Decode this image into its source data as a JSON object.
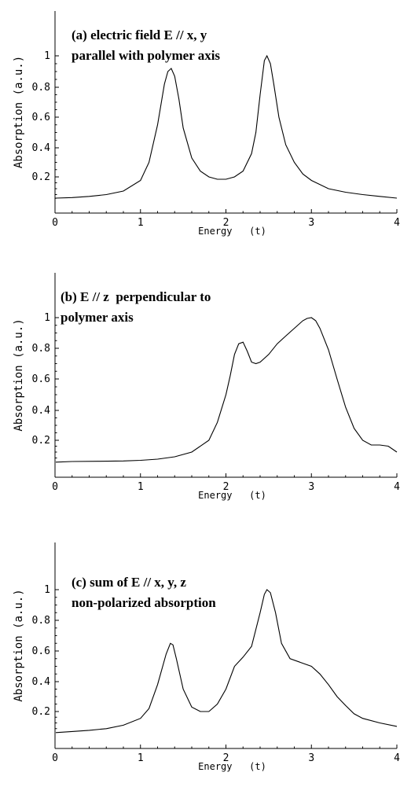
{
  "chart_data": [
    {
      "type": "line",
      "panel": "a",
      "annotation": [
        "(a) electric field E // x, y",
        "parallel with polymer axis"
      ],
      "xlabel": "Energy   (t)",
      "ylabel": "Absorption (a.u.)",
      "xlim": [
        0,
        4
      ],
      "ylim": [
        0,
        1.05
      ],
      "xticks": [
        "0",
        "1",
        "2",
        "3",
        "4"
      ],
      "yticks": [
        "0.2",
        "0.4",
        "0.6",
        "0.8",
        "1"
      ],
      "series": [
        {
          "x": [
            -0.05,
            0.0,
            0.2,
            0.4,
            0.6,
            0.8,
            1.0,
            1.1,
            1.2,
            1.28,
            1.32,
            1.36,
            1.4,
            1.45,
            1.5,
            1.6,
            1.7,
            1.8,
            1.9,
            2.0,
            2.1,
            2.2,
            2.3,
            2.35,
            2.4,
            2.45,
            2.48,
            2.52,
            2.56,
            2.62,
            2.7,
            2.8,
            2.9,
            3.0,
            3.2,
            3.4,
            3.6,
            3.8,
            4.0
          ],
          "y": [
            0.015,
            0.02,
            0.025,
            0.035,
            0.05,
            0.08,
            0.17,
            0.3,
            0.55,
            0.82,
            0.9,
            0.92,
            0.87,
            0.72,
            0.53,
            0.33,
            0.24,
            0.2,
            0.18,
            0.18,
            0.2,
            0.24,
            0.36,
            0.5,
            0.75,
            0.97,
            1.0,
            0.95,
            0.82,
            0.6,
            0.42,
            0.3,
            0.22,
            0.17,
            0.1,
            0.07,
            0.05,
            0.035,
            0.02
          ]
        }
      ]
    },
    {
      "type": "line",
      "panel": "b",
      "annotation": [
        "(b) E // z  perpendicular to",
        "polymer axis"
      ],
      "xlabel": "Energy   (t)",
      "ylabel": "Absorption (a.u.)",
      "xlim": [
        0,
        4
      ],
      "ylim": [
        0,
        1.05
      ],
      "xticks": [
        "0",
        "1",
        "2",
        "3",
        "4"
      ],
      "yticks": [
        "0.2",
        "0.4",
        "0.6",
        "0.8",
        "1"
      ],
      "series": [
        {
          "x": [
            -0.05,
            0.2,
            0.5,
            0.8,
            1.0,
            1.2,
            1.4,
            1.6,
            1.8,
            1.9,
            2.0,
            2.05,
            2.1,
            2.15,
            2.2,
            2.25,
            2.3,
            2.35,
            2.4,
            2.5,
            2.6,
            2.7,
            2.8,
            2.9,
            2.95,
            3.0,
            3.05,
            3.1,
            3.2,
            3.3,
            3.4,
            3.5,
            3.6,
            3.7,
            3.8,
            3.9,
            4.0
          ],
          "y": [
            0.015,
            0.02,
            0.022,
            0.025,
            0.03,
            0.04,
            0.06,
            0.1,
            0.2,
            0.32,
            0.5,
            0.62,
            0.76,
            0.83,
            0.84,
            0.78,
            0.71,
            0.7,
            0.71,
            0.76,
            0.83,
            0.88,
            0.93,
            0.98,
            0.995,
            1.0,
            0.98,
            0.93,
            0.79,
            0.6,
            0.42,
            0.28,
            0.2,
            0.16,
            0.16,
            0.15,
            0.1
          ]
        }
      ]
    },
    {
      "type": "line",
      "panel": "c",
      "annotation": [
        "(c) sum of E // x, y, z",
        "non-polarized absorption"
      ],
      "xlabel": "Energy   (t)",
      "ylabel": "Absorption (a.u.)",
      "xlim": [
        0,
        4
      ],
      "ylim": [
        0,
        1.05
      ],
      "xticks": [
        "0",
        "1",
        "2",
        "3",
        "4"
      ],
      "yticks": [
        "0.2",
        "0.4",
        "0.6",
        "0.8",
        "1"
      ],
      "series": [
        {
          "x": [
            -0.05,
            0.2,
            0.4,
            0.6,
            0.8,
            1.0,
            1.1,
            1.2,
            1.3,
            1.35,
            1.38,
            1.42,
            1.5,
            1.6,
            1.7,
            1.8,
            1.9,
            2.0,
            2.1,
            2.2,
            2.3,
            2.4,
            2.45,
            2.48,
            2.52,
            2.58,
            2.65,
            2.75,
            2.9,
            3.0,
            3.1,
            3.2,
            3.3,
            3.4,
            3.5,
            3.6,
            3.8,
            4.0
          ],
          "y": [
            0.015,
            0.025,
            0.035,
            0.05,
            0.08,
            0.14,
            0.22,
            0.38,
            0.58,
            0.65,
            0.64,
            0.55,
            0.35,
            0.23,
            0.2,
            0.2,
            0.25,
            0.35,
            0.5,
            0.56,
            0.63,
            0.85,
            0.97,
            1.0,
            0.98,
            0.85,
            0.65,
            0.55,
            0.52,
            0.5,
            0.45,
            0.38,
            0.3,
            0.24,
            0.18,
            0.14,
            0.1,
            0.07
          ]
        }
      ]
    }
  ]
}
